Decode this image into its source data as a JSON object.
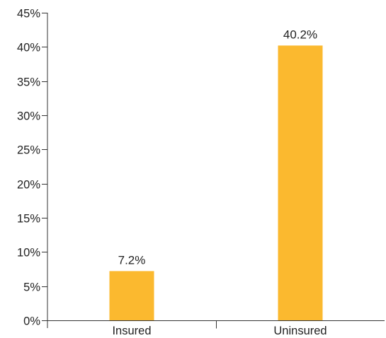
{
  "chart_data": {
    "type": "bar",
    "title": "",
    "xlabel": "",
    "ylabel": "",
    "categories": [
      "Insured",
      "Uninsured"
    ],
    "values": [
      7.2,
      40.2
    ],
    "data_labels": [
      "7.2%",
      "40.2%"
    ],
    "y_ticks": [
      0,
      5,
      10,
      15,
      20,
      25,
      30,
      35,
      40,
      45
    ],
    "y_tick_labels": [
      "0%",
      "5%",
      "10%",
      "15%",
      "20%",
      "25%",
      "30%",
      "35%",
      "40%",
      "45%"
    ],
    "ylim": [
      0,
      45
    ],
    "grid": false,
    "legend": "none",
    "bar_color": "#FBB92F"
  }
}
